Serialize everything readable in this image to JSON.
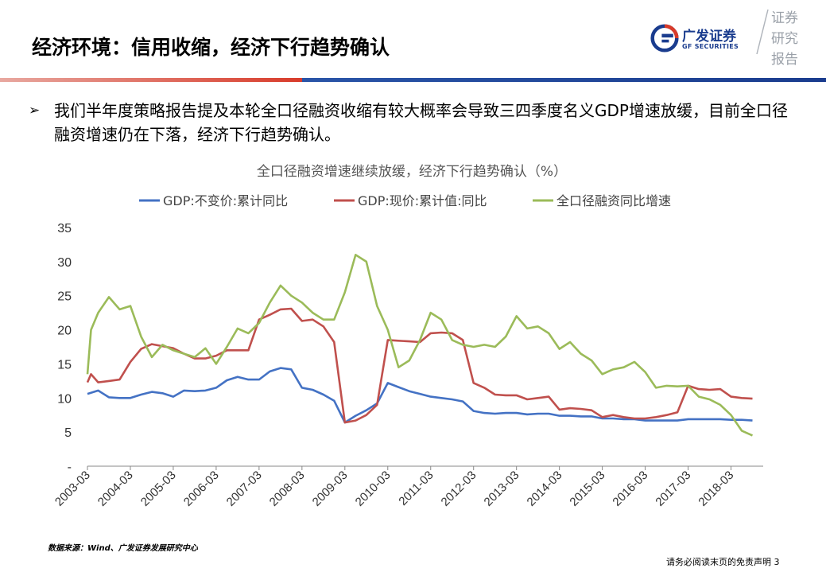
{
  "header": {
    "title": "经济环境：信用收缩，经济下行趋势确认",
    "brand_cn": "广发证券",
    "brand_en": "GF SECURITIES",
    "vertical_text": [
      "证券",
      "研究",
      "报告"
    ]
  },
  "bullet": {
    "marker": "➢",
    "text": "我们半年度策略报告提及本轮全口径融资收缩有较大概率会导致三四季度名义GDP增速放缓，目前全口径融资增速仍在下落，经济下行趋势确认。"
  },
  "chart_data": {
    "type": "line",
    "title": "全口径融资增速继续放缓，经济下行趋势确认（%）",
    "ylim": [
      0,
      35
    ],
    "yticks": [
      "-",
      "5",
      "10",
      "15",
      "20",
      "25",
      "30",
      "35"
    ],
    "x_start": "2003-03",
    "x_end": "2018-12",
    "xticks": [
      "2003-03",
      "2004-03",
      "2005-03",
      "2006-03",
      "2007-03",
      "2008-03",
      "2009-03",
      "2010-03",
      "2011-03",
      "2012-03",
      "2013-03",
      "2014-03",
      "2015-03",
      "2016-03",
      "2017-03",
      "2018-03"
    ],
    "legend_position": "top",
    "grid": false,
    "series": [
      {
        "name": "GDP:不变价:累计同比",
        "color": "#4472c4",
        "points": [
          [
            "2003-03",
            10.6
          ],
          [
            "2003-06",
            11.1
          ],
          [
            "2003-09",
            10.1
          ],
          [
            "2003-12",
            10.0
          ],
          [
            "2004-03",
            10.0
          ],
          [
            "2004-06",
            10.5
          ],
          [
            "2004-09",
            10.9
          ],
          [
            "2004-12",
            10.7
          ],
          [
            "2005-03",
            10.2
          ],
          [
            "2005-06",
            11.1
          ],
          [
            "2005-09",
            11.0
          ],
          [
            "2005-12",
            11.1
          ],
          [
            "2006-03",
            11.5
          ],
          [
            "2006-06",
            12.6
          ],
          [
            "2006-09",
            13.1
          ],
          [
            "2006-12",
            12.7
          ],
          [
            "2007-03",
            12.7
          ],
          [
            "2007-06",
            13.9
          ],
          [
            "2007-09",
            14.4
          ],
          [
            "2007-12",
            14.2
          ],
          [
            "2008-03",
            11.5
          ],
          [
            "2008-06",
            11.2
          ],
          [
            "2008-09",
            10.5
          ],
          [
            "2008-12",
            9.6
          ],
          [
            "2009-03",
            6.4
          ],
          [
            "2009-06",
            7.4
          ],
          [
            "2009-09",
            8.2
          ],
          [
            "2009-12",
            9.2
          ],
          [
            "2010-03",
            12.2
          ],
          [
            "2010-06",
            11.6
          ],
          [
            "2010-09",
            11.0
          ],
          [
            "2010-12",
            10.6
          ],
          [
            "2011-03",
            10.2
          ],
          [
            "2011-06",
            10.0
          ],
          [
            "2011-09",
            9.8
          ],
          [
            "2011-12",
            9.5
          ],
          [
            "2012-03",
            8.1
          ],
          [
            "2012-06",
            7.8
          ],
          [
            "2012-09",
            7.7
          ],
          [
            "2012-12",
            7.8
          ],
          [
            "2013-03",
            7.8
          ],
          [
            "2013-06",
            7.6
          ],
          [
            "2013-09",
            7.7
          ],
          [
            "2013-12",
            7.7
          ],
          [
            "2014-03",
            7.4
          ],
          [
            "2014-06",
            7.4
          ],
          [
            "2014-09",
            7.3
          ],
          [
            "2014-12",
            7.3
          ],
          [
            "2015-03",
            7.0
          ],
          [
            "2015-06",
            7.0
          ],
          [
            "2015-09",
            6.9
          ],
          [
            "2015-12",
            6.9
          ],
          [
            "2016-03",
            6.7
          ],
          [
            "2016-06",
            6.7
          ],
          [
            "2016-09",
            6.7
          ],
          [
            "2016-12",
            6.7
          ],
          [
            "2017-03",
            6.9
          ],
          [
            "2017-06",
            6.9
          ],
          [
            "2017-09",
            6.9
          ],
          [
            "2017-12",
            6.9
          ],
          [
            "2018-03",
            6.8
          ],
          [
            "2018-06",
            6.8
          ],
          [
            "2018-09",
            6.7
          ]
        ]
      },
      {
        "name": "GDP:现价:累计值:同比",
        "color": "#c0504d",
        "points": [
          [
            "2003-03",
            12.3
          ],
          [
            "2003-04",
            13.5
          ],
          [
            "2003-06",
            12.3
          ],
          [
            "2003-09",
            12.5
          ],
          [
            "2003-12",
            12.7
          ],
          [
            "2004-03",
            15.3
          ],
          [
            "2004-06",
            17.2
          ],
          [
            "2004-09",
            17.9
          ],
          [
            "2004-12",
            17.6
          ],
          [
            "2005-03",
            17.3
          ],
          [
            "2005-06",
            16.5
          ],
          [
            "2005-09",
            15.8
          ],
          [
            "2005-12",
            15.8
          ],
          [
            "2006-03",
            16.2
          ],
          [
            "2006-06",
            17.0
          ],
          [
            "2006-09",
            17.0
          ],
          [
            "2006-12",
            17.0
          ],
          [
            "2007-03",
            21.5
          ],
          [
            "2007-06",
            22.2
          ],
          [
            "2007-09",
            23.0
          ],
          [
            "2007-12",
            23.1
          ],
          [
            "2008-03",
            21.3
          ],
          [
            "2008-06",
            21.5
          ],
          [
            "2008-09",
            20.5
          ],
          [
            "2008-12",
            18.2
          ],
          [
            "2009-03",
            6.4
          ],
          [
            "2009-06",
            6.7
          ],
          [
            "2009-09",
            7.5
          ],
          [
            "2009-12",
            9.0
          ],
          [
            "2010-03",
            18.5
          ],
          [
            "2010-06",
            18.4
          ],
          [
            "2010-09",
            18.3
          ],
          [
            "2010-12",
            18.2
          ],
          [
            "2011-03",
            19.5
          ],
          [
            "2011-06",
            19.6
          ],
          [
            "2011-09",
            19.5
          ],
          [
            "2011-12",
            18.5
          ],
          [
            "2012-03",
            12.2
          ],
          [
            "2012-06",
            11.5
          ],
          [
            "2012-09",
            10.5
          ],
          [
            "2012-12",
            10.4
          ],
          [
            "2013-03",
            10.4
          ],
          [
            "2013-06",
            9.8
          ],
          [
            "2013-09",
            10.0
          ],
          [
            "2013-12",
            10.2
          ],
          [
            "2014-03",
            8.3
          ],
          [
            "2014-06",
            8.5
          ],
          [
            "2014-09",
            8.4
          ],
          [
            "2014-12",
            8.2
          ],
          [
            "2015-03",
            7.2
          ],
          [
            "2015-06",
            7.5
          ],
          [
            "2015-09",
            7.2
          ],
          [
            "2015-12",
            7.0
          ],
          [
            "2016-03",
            7.0
          ],
          [
            "2016-06",
            7.2
          ],
          [
            "2016-09",
            7.5
          ],
          [
            "2016-12",
            7.9
          ],
          [
            "2017-03",
            11.8
          ],
          [
            "2017-06",
            11.3
          ],
          [
            "2017-09",
            11.2
          ],
          [
            "2017-12",
            11.3
          ],
          [
            "2018-03",
            10.2
          ],
          [
            "2018-06",
            10.0
          ],
          [
            "2018-09",
            9.9
          ]
        ]
      },
      {
        "name": "全口径融资同比增速",
        "color": "#9bbb59",
        "points": [
          [
            "2003-03",
            13.5
          ],
          [
            "2003-04",
            20.0
          ],
          [
            "2003-06",
            22.5
          ],
          [
            "2003-09",
            24.8
          ],
          [
            "2003-12",
            23.0
          ],
          [
            "2004-03",
            23.5
          ],
          [
            "2004-06",
            19.0
          ],
          [
            "2004-09",
            16.0
          ],
          [
            "2004-12",
            17.8
          ],
          [
            "2005-03",
            17.0
          ],
          [
            "2005-06",
            16.5
          ],
          [
            "2005-09",
            16.0
          ],
          [
            "2005-12",
            17.3
          ],
          [
            "2006-03",
            15.0
          ],
          [
            "2006-06",
            17.5
          ],
          [
            "2006-09",
            20.2
          ],
          [
            "2006-12",
            19.5
          ],
          [
            "2007-03",
            21.0
          ],
          [
            "2007-06",
            24.0
          ],
          [
            "2007-09",
            26.5
          ],
          [
            "2007-12",
            25.0
          ],
          [
            "2008-03",
            24.0
          ],
          [
            "2008-06",
            22.5
          ],
          [
            "2008-09",
            21.5
          ],
          [
            "2008-12",
            21.5
          ],
          [
            "2009-03",
            25.5
          ],
          [
            "2009-06",
            31.0
          ],
          [
            "2009-09",
            30.0
          ],
          [
            "2009-12",
            23.5
          ],
          [
            "2010-03",
            20.0
          ],
          [
            "2010-06",
            14.5
          ],
          [
            "2010-09",
            15.5
          ],
          [
            "2010-12",
            18.5
          ],
          [
            "2011-03",
            22.5
          ],
          [
            "2011-06",
            21.5
          ],
          [
            "2011-09",
            18.5
          ],
          [
            "2011-12",
            17.8
          ],
          [
            "2012-03",
            17.5
          ],
          [
            "2012-06",
            17.8
          ],
          [
            "2012-09",
            17.5
          ],
          [
            "2012-12",
            19.0
          ],
          [
            "2013-03",
            22.0
          ],
          [
            "2013-06",
            20.2
          ],
          [
            "2013-09",
            20.5
          ],
          [
            "2013-12",
            19.5
          ],
          [
            "2014-03",
            17.2
          ],
          [
            "2014-06",
            18.2
          ],
          [
            "2014-09",
            16.5
          ],
          [
            "2014-12",
            15.5
          ],
          [
            "2015-03",
            13.5
          ],
          [
            "2015-06",
            14.2
          ],
          [
            "2015-09",
            14.5
          ],
          [
            "2015-12",
            15.3
          ],
          [
            "2016-03",
            13.8
          ],
          [
            "2016-06",
            11.5
          ],
          [
            "2016-09",
            11.8
          ],
          [
            "2016-12",
            11.7
          ],
          [
            "2017-03",
            11.8
          ],
          [
            "2017-06",
            10.2
          ],
          [
            "2017-09",
            9.8
          ],
          [
            "2017-12",
            9.0
          ],
          [
            "2018-03",
            7.5
          ],
          [
            "2018-06",
            5.2
          ],
          [
            "2018-09",
            4.5
          ]
        ]
      }
    ]
  },
  "source": "数据来源：Wind、广发证券发展研究中心",
  "footer": "请务必阅读末页的免责声明 3"
}
